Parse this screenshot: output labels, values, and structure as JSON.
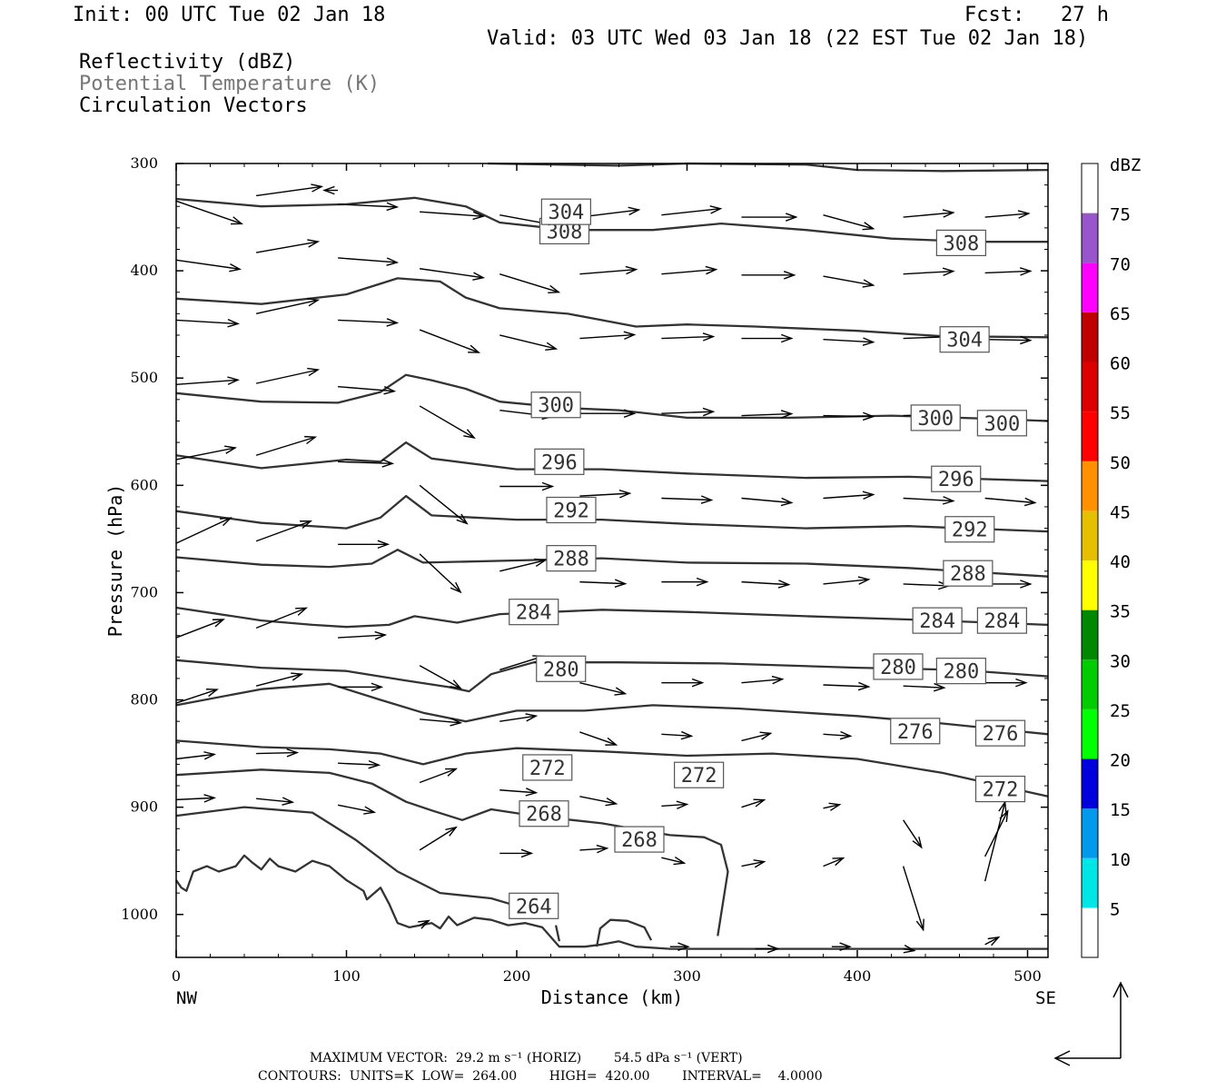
{
  "header": {
    "init": "Init: 00 UTC Tue 02 Jan 18",
    "fcst": "Fcst:   27 h",
    "valid": "Valid: 03 UTC Wed 03 Jan 18 (22 EST Tue 02 Jan 18)",
    "fields": [
      "Reflectivity (dBZ)",
      "Potential Temperature (K)",
      "Circulation Vectors"
    ]
  },
  "footer": {
    "max_vector": "MAXIMUM VECTOR:  29.2 m s⁻¹ (HORIZ)        54.5 dPa s⁻¹ (VERT)",
    "contours": "CONTOURS:  UNITS=K  LOW=  264.00        HIGH=  420.00        INTERVAL=    4.0000"
  },
  "colors": {
    "contour": "#333333",
    "axis": "#000000",
    "colorbar": [
      "#00e6e6",
      "#0099ee",
      "#0000dd",
      "#00ff00",
      "#00cc00",
      "#008800",
      "#ffff00",
      "#e6bf00",
      "#ff9000",
      "#ff0000",
      "#dd0000",
      "#c00000",
      "#ff00ff",
      "#9955cc"
    ]
  },
  "chart_data": {
    "type": "cross-section",
    "xlabel": "Distance (km)",
    "ylabel": "Pressure (hPa)",
    "x_ticks": [
      0,
      100,
      200,
      300,
      400,
      500
    ],
    "y_ticks": [
      300,
      400,
      500,
      600,
      700,
      800,
      900,
      1000
    ],
    "xlim": [
      0,
      512
    ],
    "ylim": [
      300,
      1040
    ],
    "end_labels": {
      "left": "NW",
      "right": "SE"
    },
    "colorbar": {
      "label": "dBZ",
      "ticks": [
        5,
        10,
        15,
        20,
        25,
        30,
        35,
        40,
        45,
        50,
        55,
        60,
        65,
        70,
        75
      ]
    },
    "contour_labels": [
      {
        "text": "308",
        "x": 228,
        "p": 363
      },
      {
        "text": "308",
        "x": 461,
        "p": 374
      },
      {
        "text": "304",
        "x": 229,
        "p": 345
      },
      {
        "text": "304",
        "x": 463,
        "p": 464
      },
      {
        "text": "300",
        "x": 223,
        "p": 525
      },
      {
        "text": "300",
        "x": 446,
        "p": 537
      },
      {
        "text": "300",
        "x": 485,
        "p": 542
      },
      {
        "text": "296",
        "x": 225,
        "p": 578
      },
      {
        "text": "296",
        "x": 458,
        "p": 594
      },
      {
        "text": "292",
        "x": 232,
        "p": 623
      },
      {
        "text": "292",
        "x": 466,
        "p": 641
      },
      {
        "text": "288",
        "x": 232,
        "p": 668
      },
      {
        "text": "288",
        "x": 465,
        "p": 682
      },
      {
        "text": "284",
        "x": 210,
        "p": 718
      },
      {
        "text": "284",
        "x": 447,
        "p": 726
      },
      {
        "text": "284",
        "x": 485,
        "p": 726
      },
      {
        "text": "280",
        "x": 226,
        "p": 771
      },
      {
        "text": "280",
        "x": 424,
        "p": 769
      },
      {
        "text": "280",
        "x": 461,
        "p": 773
      },
      {
        "text": "276",
        "x": 434,
        "p": 829
      },
      {
        "text": "276",
        "x": 484,
        "p": 831
      },
      {
        "text": "272",
        "x": 218,
        "p": 863
      },
      {
        "text": "272",
        "x": 307,
        "p": 870
      },
      {
        "text": "272",
        "x": 484,
        "p": 883
      },
      {
        "text": "268",
        "x": 216,
        "p": 906
      },
      {
        "text": "268",
        "x": 272,
        "p": 930
      },
      {
        "text": "264",
        "x": 210,
        "p": 992
      }
    ]
  }
}
